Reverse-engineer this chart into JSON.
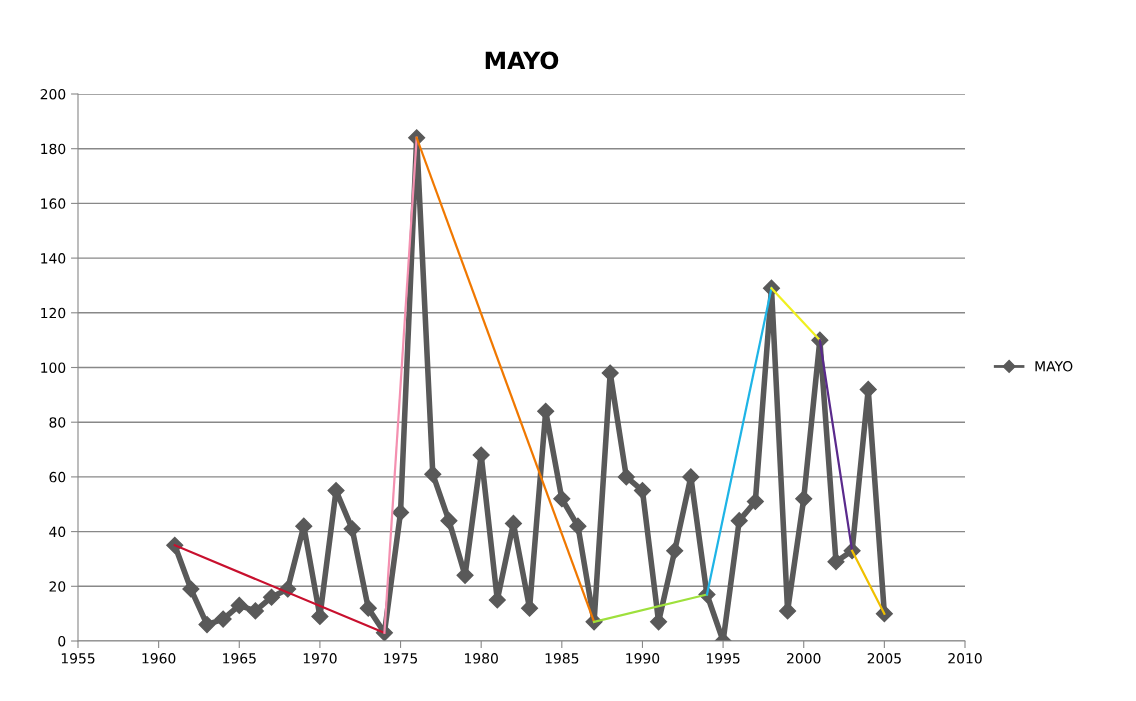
{
  "chart_data": {
    "type": "line",
    "title": "MAYO",
    "xlim": [
      1955,
      2010
    ],
    "xticks": [
      1955,
      1960,
      1965,
      1970,
      1975,
      1980,
      1985,
      1990,
      1995,
      2000,
      2005,
      2010
    ],
    "ylim": [
      0,
      200
    ],
    "yticks": [
      0,
      20,
      40,
      60,
      80,
      100,
      120,
      140,
      160,
      180,
      200
    ],
    "grid": "y",
    "legend": "right",
    "series": [
      {
        "name": "MAYO",
        "color": "#595959",
        "marker": "diamond",
        "x": [
          1961,
          1962,
          1963,
          1964,
          1965,
          1966,
          1967,
          1968,
          1969,
          1970,
          1971,
          1972,
          1973,
          1974,
          1975,
          1976,
          1977,
          1978,
          1979,
          1980,
          1981,
          1982,
          1983,
          1984,
          1985,
          1986,
          1987,
          1988,
          1989,
          1990,
          1991,
          1992,
          1993,
          1994,
          1995,
          1996,
          1997,
          1998,
          1999,
          2000,
          2001,
          2002,
          2003,
          2004,
          2005
        ],
        "values": [
          35,
          19,
          6,
          8,
          13,
          11,
          16,
          19,
          42,
          9,
          55,
          41,
          12,
          3,
          47,
          184,
          61,
          44,
          24,
          68,
          15,
          43,
          12,
          84,
          52,
          42,
          7,
          98,
          60,
          55,
          7,
          33,
          60,
          17,
          0,
          44,
          51,
          129,
          11,
          52,
          110,
          29,
          33,
          92,
          10
        ]
      },
      {
        "color": "#c8102e",
        "marker": "none",
        "x": [
          1961,
          1974
        ],
        "values": [
          35,
          3
        ]
      },
      {
        "color": "#f490b0",
        "marker": "none",
        "x": [
          1974,
          1976
        ],
        "values": [
          3,
          184
        ]
      },
      {
        "color": "#f07800",
        "marker": "none",
        "x": [
          1976,
          1987
        ],
        "values": [
          184,
          7
        ]
      },
      {
        "color": "#9ee03c",
        "marker": "none",
        "x": [
          1987,
          1994
        ],
        "values": [
          7,
          17
        ]
      },
      {
        "color": "#1eb4e6",
        "marker": "none",
        "x": [
          1994,
          1998
        ],
        "values": [
          17,
          129
        ]
      },
      {
        "color": "#f0f020",
        "marker": "none",
        "x": [
          1998,
          2001
        ],
        "values": [
          129,
          110
        ]
      },
      {
        "color": "#5a2a8c",
        "marker": "none",
        "x": [
          2001,
          2003
        ],
        "values": [
          110,
          33
        ]
      },
      {
        "color": "#f0c000",
        "marker": "none",
        "x": [
          2003,
          2005
        ],
        "values": [
          33,
          10
        ]
      }
    ]
  }
}
